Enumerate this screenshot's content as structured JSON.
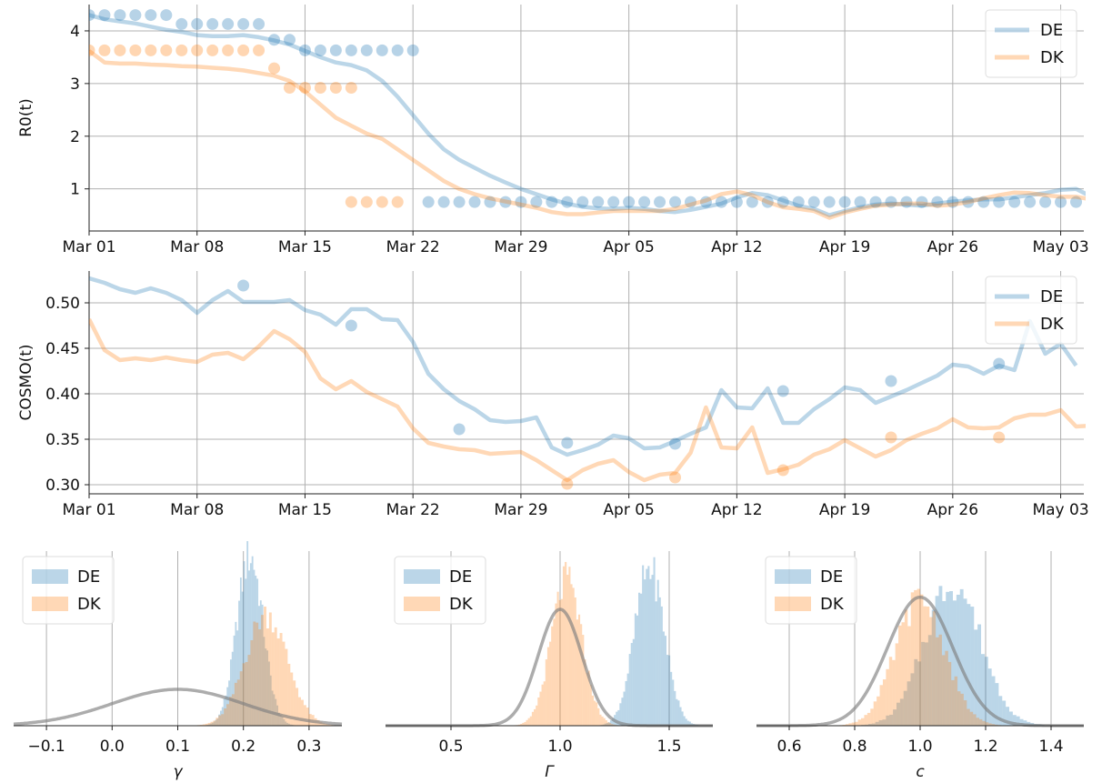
{
  "figure": {
    "colors": {
      "DE": "#1f77b4",
      "DK": "#ff7f0e",
      "prior": "#808080",
      "grid": "#b0b0b0",
      "axis": "#555555"
    },
    "dates": {
      "start": "2020-03-01",
      "tick_labels": [
        "Mar 01",
        "Mar 08",
        "Mar 15",
        "Mar 22",
        "Mar 29",
        "Apr 05",
        "Apr 12",
        "Apr 19",
        "Apr 26",
        "May 03"
      ]
    }
  },
  "chart_data": [
    {
      "id": "r0",
      "type": "line",
      "ylabel": "R0(t)",
      "ylim": [
        0.2,
        4.5
      ],
      "yticks": [
        1,
        2,
        3,
        4
      ],
      "grid": true,
      "legend_position": "top-right",
      "legend": [
        "DE",
        "DK"
      ],
      "series": [
        {
          "name": "DE",
          "kind": "line",
          "x_start": "2020-03-01",
          "values": [
            4.3,
            4.22,
            4.18,
            4.14,
            4.08,
            4.02,
            3.98,
            3.92,
            3.9,
            3.9,
            3.92,
            3.88,
            3.82,
            3.74,
            3.62,
            3.5,
            3.4,
            3.35,
            3.25,
            3.05,
            2.75,
            2.4,
            2.05,
            1.75,
            1.55,
            1.4,
            1.25,
            1.12,
            1.0,
            0.9,
            0.8,
            0.72,
            0.66,
            0.63,
            0.62,
            0.64,
            0.62,
            0.58,
            0.56,
            0.6,
            0.66,
            0.72,
            0.84,
            0.92,
            0.88,
            0.78,
            0.68,
            0.62,
            0.5,
            0.58,
            0.65,
            0.7,
            0.72,
            0.7,
            0.68,
            0.72,
            0.76,
            0.78,
            0.8,
            0.8,
            0.84,
            0.88,
            0.92,
            0.98,
            1.0,
            0.85,
            0.78,
            0.78,
            0.82
          ]
        },
        {
          "name": "DE",
          "kind": "points",
          "x_start": "2020-03-01",
          "values": [
            4.3,
            4.3,
            4.3,
            4.3,
            4.3,
            4.3,
            4.13,
            4.13,
            4.13,
            4.13,
            4.13,
            4.13,
            3.83,
            3.83,
            3.63,
            3.63,
            3.63,
            3.63,
            3.63,
            3.63,
            3.63,
            3.63,
            0.75,
            0.75,
            0.75,
            0.75,
            0.75,
            0.75,
            0.75,
            0.75,
            0.75,
            0.75,
            0.75,
            0.75,
            0.75,
            0.75,
            0.75,
            0.75,
            0.75,
            0.75,
            0.75,
            0.75,
            0.75,
            0.75,
            0.75,
            0.75,
            0.75,
            0.75,
            0.75,
            0.75,
            0.75,
            0.75,
            0.75,
            0.75,
            0.75,
            0.75,
            0.75,
            0.75,
            0.75,
            0.75,
            0.75,
            0.75,
            0.75,
            0.75,
            0.75,
            0.75,
            0.75,
            0.75,
            0.75
          ]
        },
        {
          "name": "DK",
          "kind": "line",
          "x_start": "2020-03-01",
          "values": [
            3.62,
            3.4,
            3.38,
            3.38,
            3.36,
            3.35,
            3.33,
            3.32,
            3.3,
            3.28,
            3.25,
            3.2,
            3.15,
            3.05,
            2.85,
            2.6,
            2.35,
            2.2,
            2.05,
            1.95,
            1.75,
            1.55,
            1.35,
            1.15,
            1.0,
            0.9,
            0.82,
            0.76,
            0.7,
            0.64,
            0.56,
            0.52,
            0.52,
            0.55,
            0.58,
            0.58,
            0.58,
            0.58,
            0.62,
            0.7,
            0.78,
            0.9,
            0.95,
            0.88,
            0.75,
            0.65,
            0.62,
            0.58,
            0.45,
            0.55,
            0.62,
            0.68,
            0.7,
            0.72,
            0.72,
            0.68,
            0.7,
            0.75,
            0.82,
            0.88,
            0.93,
            0.92,
            0.88,
            0.85,
            0.85,
            0.8,
            0.75,
            0.75,
            0.8
          ]
        },
        {
          "name": "DK",
          "kind": "points",
          "x_start": "2020-03-01",
          "values": [
            3.63,
            3.63,
            3.63,
            3.63,
            3.63,
            3.63,
            3.63,
            3.63,
            3.63,
            3.63,
            3.63,
            3.63,
            3.29,
            2.92,
            2.92,
            2.92,
            2.92,
            2.92,
            null,
            null,
            null,
            null,
            null,
            null,
            null,
            null,
            null,
            null,
            null,
            null,
            null,
            null,
            null,
            null,
            null,
            null,
            null,
            null,
            null,
            null,
            null,
            null,
            null,
            null,
            null,
            null,
            null,
            null,
            null,
            null,
            null,
            null,
            null,
            null,
            null,
            null,
            null,
            null,
            null,
            null,
            null,
            null,
            null,
            null,
            null,
            null,
            null,
            null,
            null
          ]
        },
        {
          "name": "DK",
          "kind": "points",
          "x_start": "2020-03-18",
          "values": [
            0.75,
            0.75,
            0.75,
            0.75
          ]
        }
      ]
    },
    {
      "id": "cosmo",
      "type": "line",
      "ylabel": "COSMO(t)",
      "ylim": [
        0.29,
        0.535
      ],
      "yticks": [
        0.3,
        0.35,
        0.4,
        0.45,
        0.5
      ],
      "ytick_labels": [
        "0.30",
        "0.35",
        "0.40",
        "0.45",
        "0.50"
      ],
      "grid": true,
      "legend_position": "top-right",
      "legend": [
        "DE",
        "DK"
      ],
      "series": [
        {
          "name": "DE",
          "kind": "line",
          "x_start": "2020-03-01",
          "values": [
            0.527,
            0.522,
            0.515,
            0.511,
            0.516,
            0.511,
            0.503,
            0.489,
            0.503,
            0.513,
            0.501,
            0.501,
            0.501,
            0.503,
            0.492,
            0.487,
            0.476,
            0.493,
            0.493,
            0.482,
            0.481,
            0.457,
            0.422,
            0.405,
            0.392,
            0.383,
            0.371,
            0.369,
            0.37,
            0.374,
            0.341,
            0.333,
            0.338,
            0.344,
            0.354,
            0.351,
            0.34,
            0.341,
            0.348,
            0.356,
            0.363,
            0.404,
            0.385,
            0.384,
            0.406,
            0.368,
            0.368,
            0.383,
            0.394,
            0.407,
            0.404,
            0.39,
            0.397,
            0.404,
            0.412,
            0.42,
            0.432,
            0.43,
            0.422,
            0.431,
            0.426,
            0.48,
            0.444,
            0.455,
            0.431
          ]
        },
        {
          "name": "DE",
          "kind": "points",
          "x": [
            10,
            17,
            24,
            31,
            38,
            45,
            52,
            59
          ],
          "values": [
            0.519,
            0.475,
            0.361,
            0.346,
            0.345,
            0.403,
            0.414,
            0.433
          ]
        },
        {
          "name": "DK",
          "kind": "line",
          "x_start": "2020-03-01",
          "values": [
            0.482,
            0.448,
            0.437,
            0.439,
            0.437,
            0.44,
            0.437,
            0.435,
            0.443,
            0.445,
            0.438,
            0.452,
            0.469,
            0.46,
            0.446,
            0.417,
            0.405,
            0.414,
            0.402,
            0.394,
            0.386,
            0.362,
            0.346,
            0.342,
            0.339,
            0.338,
            0.334,
            0.335,
            0.336,
            0.327,
            0.316,
            0.305,
            0.316,
            0.323,
            0.327,
            0.314,
            0.305,
            0.311,
            0.313,
            0.335,
            0.385,
            0.341,
            0.34,
            0.363,
            0.313,
            0.317,
            0.322,
            0.333,
            0.339,
            0.349,
            0.34,
            0.331,
            0.338,
            0.349,
            0.356,
            0.362,
            0.372,
            0.363,
            0.362,
            0.363,
            0.373,
            0.377,
            0.377,
            0.382,
            0.364,
            0.365
          ]
        },
        {
          "name": "DK",
          "kind": "points",
          "x": [
            31,
            38,
            45,
            52,
            59
          ],
          "values": [
            0.301,
            0.308,
            0.316,
            0.352,
            0.352
          ]
        }
      ]
    },
    {
      "id": "gamma",
      "type": "bar",
      "xlabel": "γ",
      "xlim": [
        -0.15,
        0.35
      ],
      "xticks": [
        -0.1,
        0.0,
        0.1,
        0.2,
        0.3
      ],
      "xtick_labels": [
        "−0.1",
        "0.0",
        "0.1",
        "0.2",
        "0.3"
      ],
      "ylim": [
        0,
        7.2
      ],
      "grid": true,
      "legend_position": "top-left",
      "legend": [
        "DE",
        "DK"
      ],
      "series": [
        {
          "name": "DE",
          "kind": "histogram",
          "mean": 0.21,
          "sd": 0.02,
          "peak": 7.0
        },
        {
          "name": "DK",
          "kind": "histogram",
          "mean": 0.235,
          "sd": 0.032,
          "peak": 4.6
        },
        {
          "name": "prior",
          "kind": "curve",
          "mean": 0.1,
          "sd": 0.1,
          "peak": 1.5
        }
      ]
    },
    {
      "id": "Gamma",
      "type": "bar",
      "xlabel": "Γ",
      "xlim": [
        0.2,
        1.7
      ],
      "xticks": [
        0.5,
        1.0,
        1.5
      ],
      "xtick_labels": [
        "0.5",
        "1.0",
        "1.5"
      ],
      "ylim": [
        0,
        7.2
      ],
      "grid": true,
      "legend_position": "top-left",
      "legend": [
        "DE",
        "DK"
      ],
      "series": [
        {
          "name": "DE",
          "kind": "histogram",
          "mean": 1.41,
          "sd": 0.068,
          "peak": 6.5
        },
        {
          "name": "DK",
          "kind": "histogram",
          "mean": 1.03,
          "sd": 0.07,
          "peak": 6.0
        },
        {
          "name": "prior",
          "kind": "curve",
          "mean": 1.0,
          "sd": 0.1,
          "peak": 4.8
        }
      ]
    },
    {
      "id": "c",
      "type": "bar",
      "xlabel": "c",
      "xlim": [
        0.5,
        1.5
      ],
      "xticks": [
        0.6,
        0.8,
        1.0,
        1.2,
        1.4
      ],
      "xtick_labels": [
        "0.6",
        "0.8",
        "1.0",
        "1.2",
        "1.4"
      ],
      "ylim": [
        0,
        7.2
      ],
      "grid": true,
      "legend_position": "top-left",
      "legend": [
        "DE",
        "DK"
      ],
      "series": [
        {
          "name": "DE",
          "kind": "histogram",
          "mean": 1.1,
          "sd": 0.085,
          "peak": 5.9
        },
        {
          "name": "DK",
          "kind": "histogram",
          "mean": 1.0,
          "sd": 0.075,
          "peak": 5.2
        },
        {
          "name": "prior",
          "kind": "curve",
          "mean": 1.0,
          "sd": 0.1,
          "peak": 5.3
        }
      ]
    }
  ]
}
